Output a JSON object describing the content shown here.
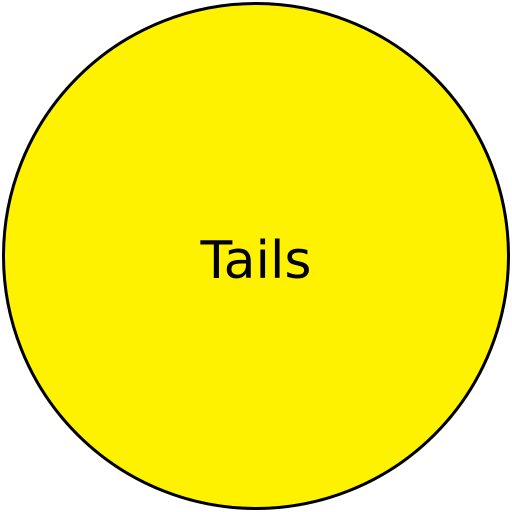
{
  "coin": {
    "face_label": "Tails",
    "fill_color": "#fff200",
    "border_color": "#000000"
  }
}
